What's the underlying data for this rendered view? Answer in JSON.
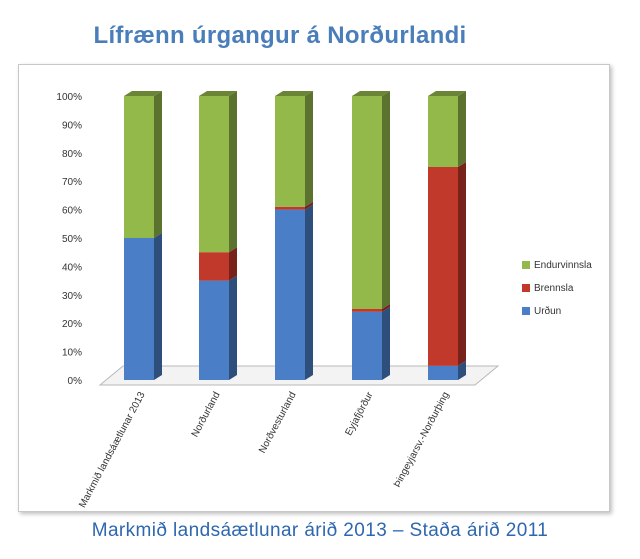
{
  "title": "Lífrænn úrgangur á Norðurlandi",
  "subtitle": "Markmið landsáætlunar árið 2013 – Staða árið 2011",
  "colors": {
    "Endurvinnsla": "#93b94a",
    "Brennsla": "#c0392b",
    "Urðun": "#4a7ec6"
  },
  "chart_data": {
    "type": "bar",
    "stacked": true,
    "categories": [
      "Markmið landsáætlunar 2013",
      "Norðurland",
      "Norðvesturland",
      "Eyjafjörður",
      "Þingeyjarsv.-Norðurþing"
    ],
    "series": [
      {
        "name": "Urðun",
        "values": [
          50,
          35,
          60,
          24,
          5
        ]
      },
      {
        "name": "Brennsla",
        "values": [
          0,
          10,
          1,
          1,
          70
        ]
      },
      {
        "name": "Endurvinnsla",
        "values": [
          50,
          55,
          39,
          75,
          25
        ]
      }
    ],
    "y_ticks": [
      "0%",
      "10%",
      "20%",
      "30%",
      "40%",
      "50%",
      "60%",
      "70%",
      "80%",
      "90%",
      "100%"
    ],
    "ylim": [
      0,
      100
    ],
    "legend_position": "right",
    "legend": [
      "Endurvinnsla",
      "Brennsla",
      "Urðun"
    ]
  }
}
